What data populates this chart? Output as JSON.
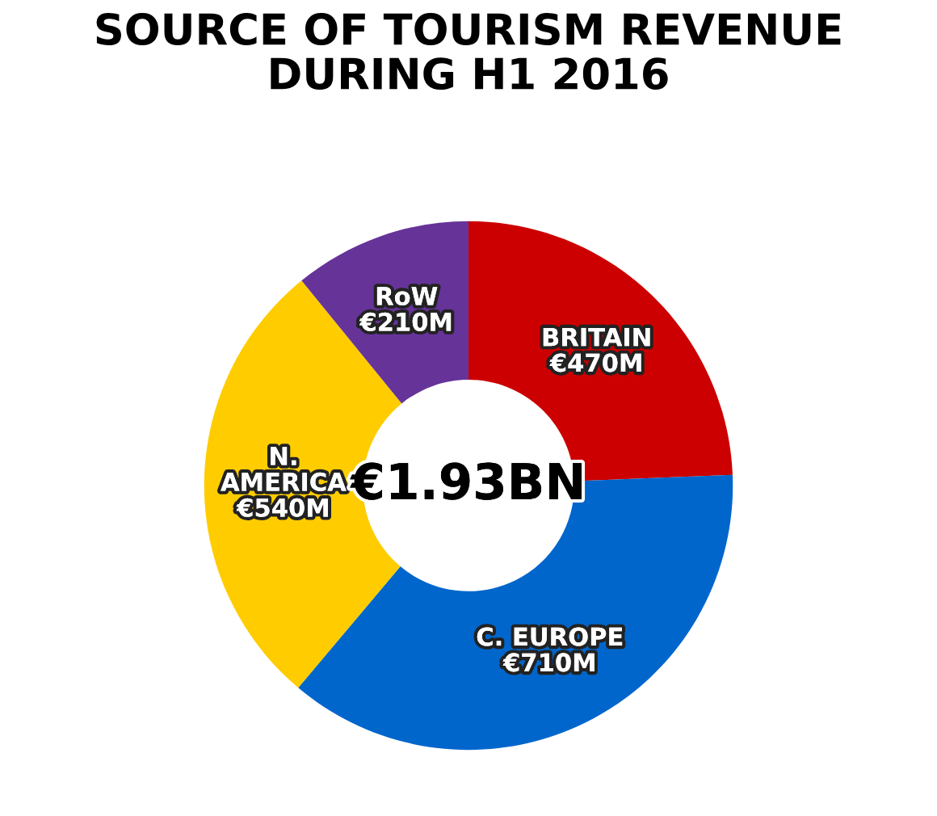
{
  "chart_data": {
    "type": "donut",
    "title": "SOURCE OF TOURISM REVENUE\nDURING H1 2016",
    "categories": [
      "BRITAIN",
      "C. EUROPE",
      "N.\nAMERICA",
      "RoW"
    ],
    "values": [
      470,
      710,
      540,
      210
    ],
    "colors": [
      "#cc0000",
      "#0066cc",
      "#ffcc00",
      "#663399"
    ],
    "value_labels": [
      "€470M",
      "€710M",
      "€540M",
      "€210M"
    ],
    "annotations": [
      "€1.93BN"
    ],
    "legend": false
  }
}
